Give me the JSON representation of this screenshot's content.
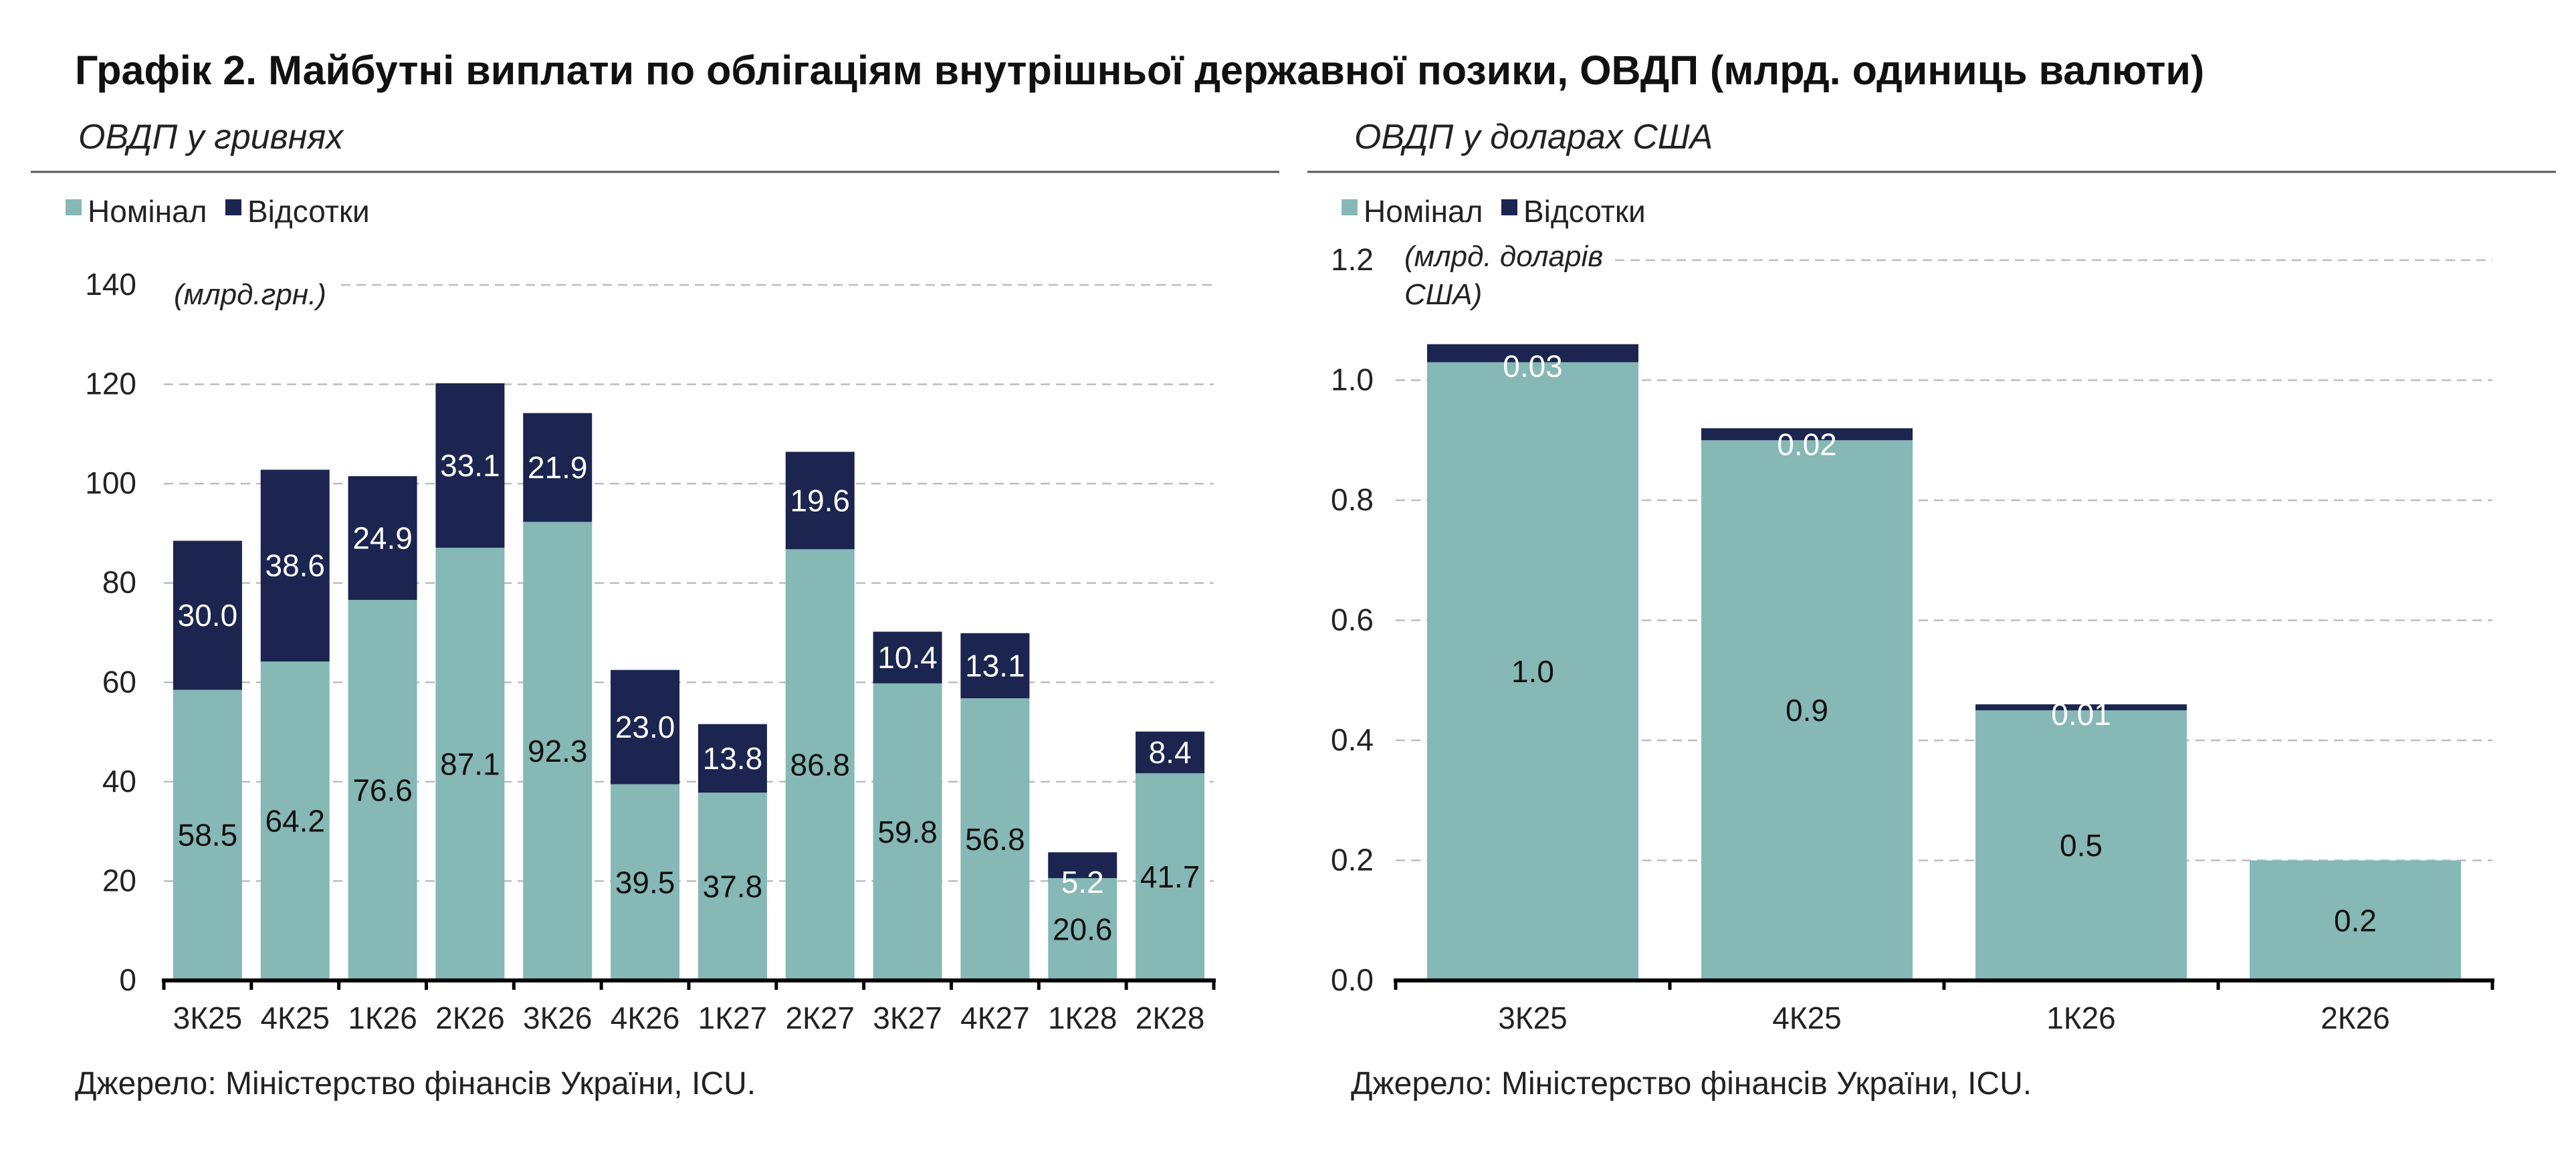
{
  "figure": {
    "title": "Графік 2. Майбутні виплати по облігаціям внутрішньої державної позики, ОВДП (млрд. одиниць валюти)",
    "source_left": "Джерело: Міністерство фінансів України, ICU.",
    "source_right": "Джерело: Міністерство фінансів України, ICU."
  },
  "colors": {
    "nominal": "#86b8b5",
    "interest": "#1b2550",
    "grid": "#bdbdbd",
    "axis": "#000000"
  },
  "chart_data": [
    {
      "type": "bar",
      "stacked": true,
      "subtitle": "ОВДП у гривнях",
      "unit_label": "(млрд.грн.)",
      "categories": [
        "3К25",
        "4К25",
        "1К26",
        "2К26",
        "3К26",
        "4К26",
        "1К27",
        "2К27",
        "3К27",
        "4К27",
        "1К28",
        "2К28"
      ],
      "series": [
        {
          "name": "Номінал",
          "values": [
            58.5,
            64.2,
            76.6,
            87.1,
            92.3,
            39.5,
            37.8,
            86.8,
            59.8,
            56.8,
            20.6,
            41.7
          ],
          "labels": [
            "58.5",
            "64.2",
            "76.6",
            "87.1",
            "92.3",
            "39.5",
            "37.8",
            "86.8",
            "59.8",
            "56.8",
            "20.6",
            "41.7"
          ]
        },
        {
          "name": "Відсотки",
          "values": [
            30.0,
            38.6,
            24.9,
            33.1,
            21.9,
            23.0,
            13.8,
            19.6,
            10.4,
            13.1,
            5.2,
            8.4
          ],
          "labels": [
            "30.0",
            "38.6",
            "24.9",
            "33.1",
            "21.9",
            "23.0",
            "13.8",
            "19.6",
            "10.4",
            "13.1",
            "5.2",
            "8.4"
          ]
        }
      ],
      "ylim": [
        0,
        140
      ],
      "yticks": [
        "0",
        "20",
        "40",
        "60",
        "80",
        "100",
        "120",
        "140"
      ],
      "grid": true,
      "legend": "top-left"
    },
    {
      "type": "bar",
      "stacked": true,
      "subtitle": "ОВДП у доларах США",
      "unit_label": [
        "(млрд. доларів",
        "США)"
      ],
      "categories": [
        "3К25",
        "4К25",
        "1К26",
        "2К26"
      ],
      "series": [
        {
          "name": "Номінал",
          "values": [
            1.03,
            0.9,
            0.45,
            0.2
          ],
          "labels": [
            "1.0",
            "0.9",
            "0.5",
            "0.2"
          ]
        },
        {
          "name": "Відсотки",
          "values": [
            0.03,
            0.02,
            0.01,
            0
          ],
          "labels": [
            "0.03",
            "0.02",
            "0.01",
            ""
          ]
        }
      ],
      "ylim": [
        0,
        1.2
      ],
      "yticks": [
        "0.0",
        "0.2",
        "0.4",
        "0.6",
        "0.8",
        "1.0",
        "1.2"
      ],
      "grid": true,
      "legend": "top-left"
    }
  ]
}
